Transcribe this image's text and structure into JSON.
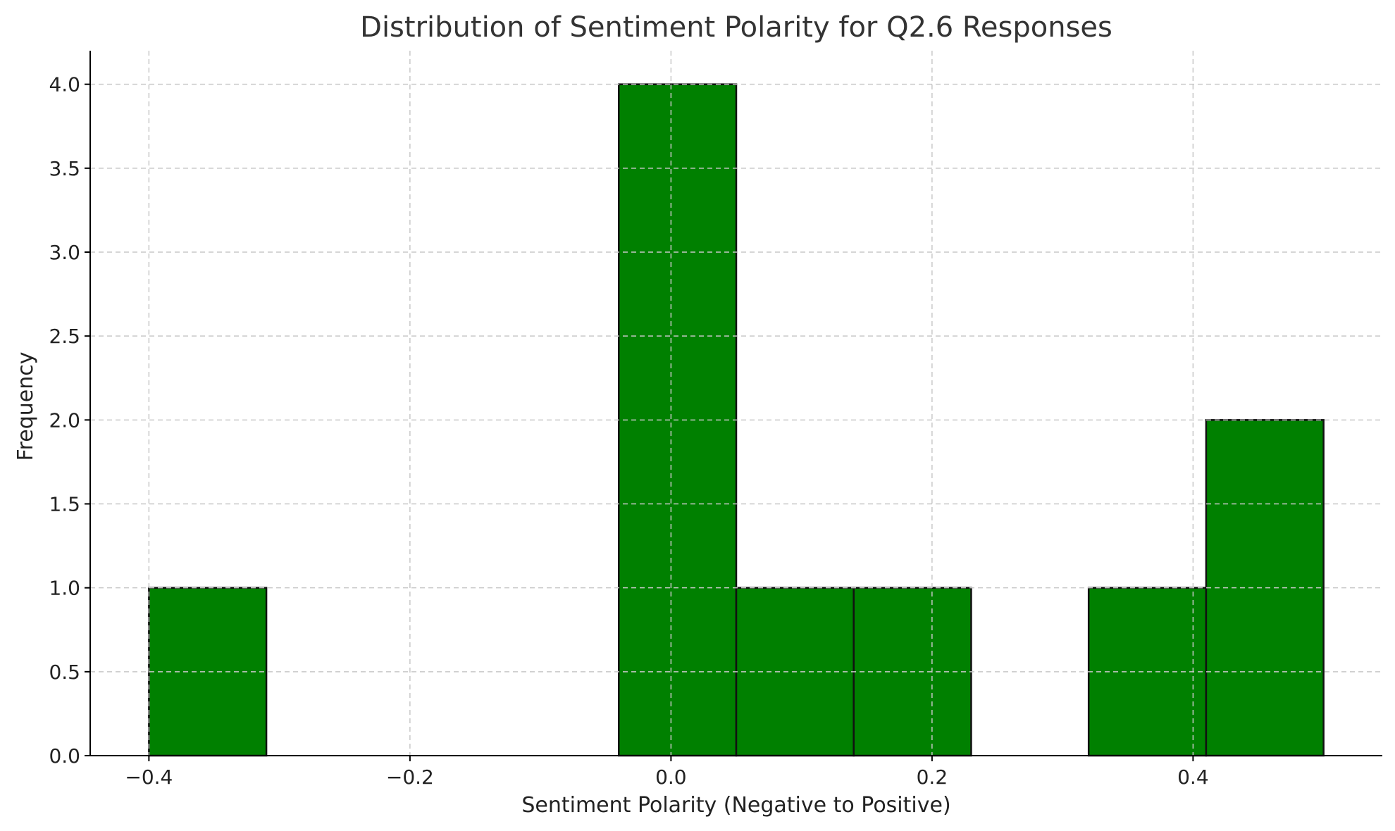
{
  "chart_data": {
    "type": "bar",
    "title": "Distribution of Sentiment Polarity for Q2.6 Responses",
    "xlabel": "Sentiment Polarity (Negative to Positive)",
    "ylabel": "Frequency",
    "xlim": [
      -0.445,
      0.545
    ],
    "ylim": [
      0,
      4.2
    ],
    "xticks": [
      -0.4,
      -0.2,
      0.0,
      0.2,
      0.4
    ],
    "xtick_labels": [
      "−0.4",
      "−0.2",
      "0.0",
      "0.2",
      "0.4"
    ],
    "yticks": [
      0,
      0.5,
      1,
      1.5,
      2,
      2.5,
      3,
      3.5,
      4
    ],
    "ytick_labels": [
      "0.0",
      "0.5",
      "1.0",
      "1.5",
      "2.0",
      "2.5",
      "3.0",
      "3.5",
      "4.0"
    ],
    "grid": true,
    "bar_color": "#008000",
    "bins": [
      {
        "x0": -0.4,
        "x1": -0.31,
        "count": 1
      },
      {
        "x0": -0.31,
        "x1": -0.22,
        "count": 0
      },
      {
        "x0": -0.22,
        "x1": -0.13,
        "count": 0
      },
      {
        "x0": -0.13,
        "x1": -0.04,
        "count": 0
      },
      {
        "x0": -0.04,
        "x1": 0.05,
        "count": 4
      },
      {
        "x0": 0.05,
        "x1": 0.14,
        "count": 1
      },
      {
        "x0": 0.14,
        "x1": 0.23,
        "count": 1
      },
      {
        "x0": 0.23,
        "x1": 0.32,
        "count": 0
      },
      {
        "x0": 0.32,
        "x1": 0.41,
        "count": 1
      },
      {
        "x0": 0.41,
        "x1": 0.5,
        "count": 2
      }
    ]
  }
}
